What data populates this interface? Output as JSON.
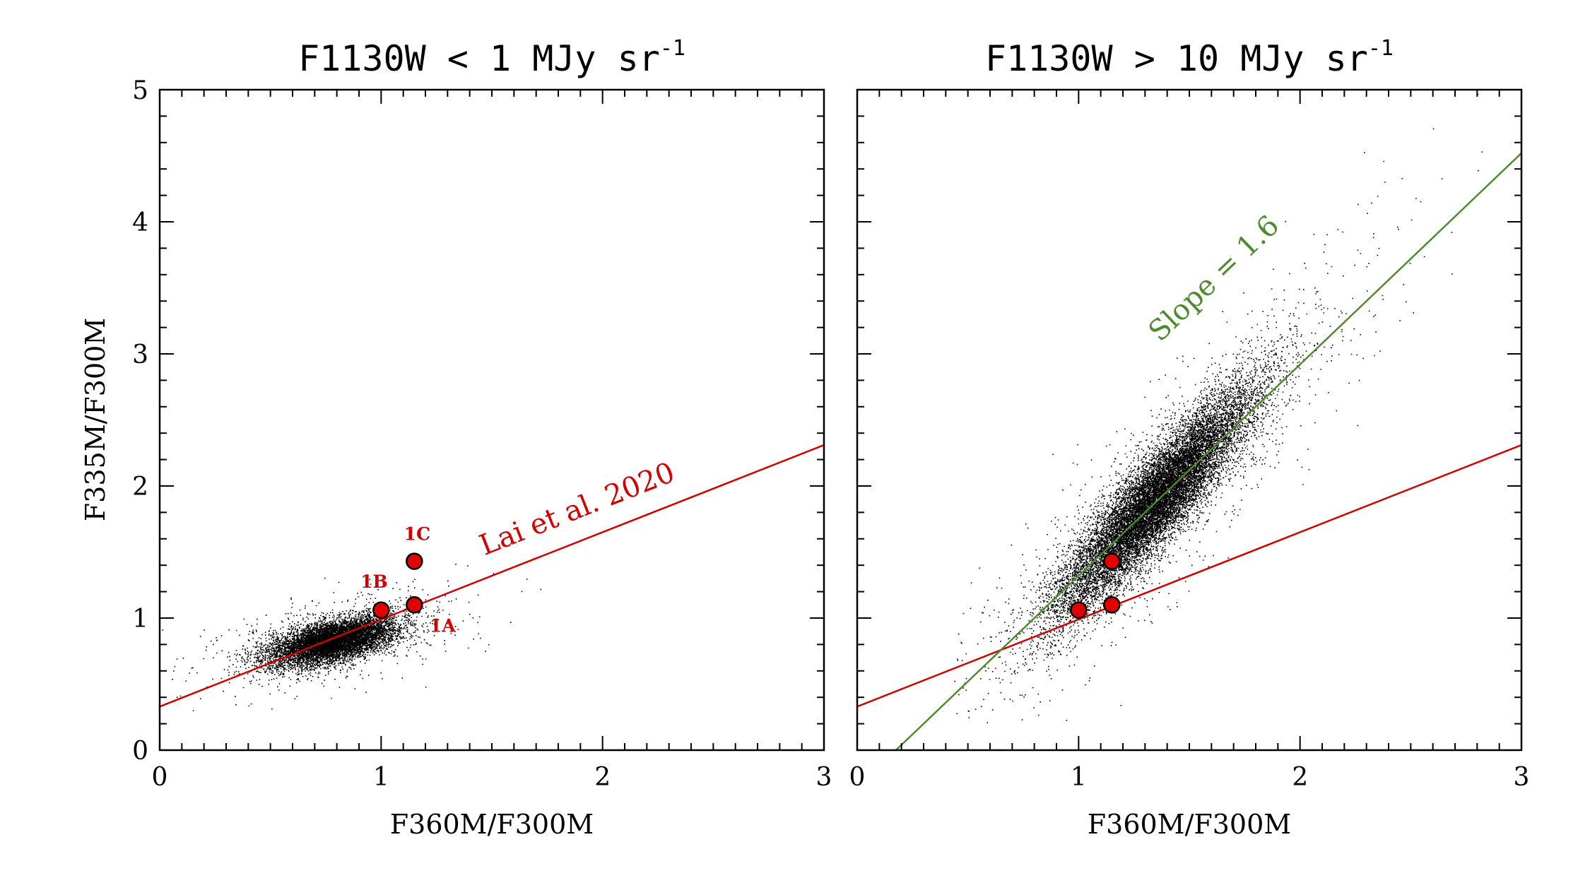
{
  "colors": {
    "red_line": "#d40000",
    "green_line": "#4e8a2e",
    "marker_fill": "#e00000",
    "marker_edge": "#000000",
    "density": "#000000"
  },
  "chart_data": [
    {
      "type": "scatter",
      "title_main": "F1130W < 1 MJy sr",
      "title_sup": "-1",
      "xlabel": "F360M/F300M",
      "ylabel": "F335M/F300M",
      "xlim": [
        0,
        3
      ],
      "ylim": [
        0,
        5
      ],
      "x_ticks": [
        "0",
        "1",
        "2",
        "3"
      ],
      "y_ticks": [
        "0",
        "1",
        "2",
        "3",
        "4",
        "5"
      ],
      "grid": false,
      "density_cloud": {
        "center": [
          0.78,
          0.83
        ],
        "sigma": [
          0.14,
          0.09
        ],
        "correlation": 0.55,
        "extent": [
          0.3,
          1.55
        ]
      },
      "lines": [
        {
          "name": "Lai et al. 2020",
          "slope": 0.66,
          "intercept": 0.33,
          "color": "red_line"
        }
      ],
      "annotations": [
        {
          "text": "Lai et al. 2020",
          "x": 1.9,
          "y": 1.76,
          "rotate_with": 0
        }
      ],
      "points": [
        {
          "label": "1A",
          "x": 1.15,
          "y": 1.1
        },
        {
          "label": "1B",
          "x": 1.0,
          "y": 1.06
        },
        {
          "label": "1C",
          "x": 1.15,
          "y": 1.43
        }
      ]
    },
    {
      "type": "scatter",
      "title_main": "F1130W > 10 MJy sr",
      "title_sup": "-1",
      "xlabel": "F360M/F300M",
      "ylabel": "",
      "xlim": [
        0,
        3
      ],
      "ylim": [
        0,
        5
      ],
      "x_ticks": [
        "0",
        "1",
        "2",
        "3"
      ],
      "y_ticks": [],
      "grid": false,
      "density_cloud": {
        "center": [
          1.35,
          1.9
        ],
        "sigma": [
          0.22,
          0.42
        ],
        "correlation": 0.9,
        "extent": [
          0.7,
          2.6
        ]
      },
      "lines": [
        {
          "name": "",
          "slope": 0.66,
          "intercept": 0.33,
          "color": "red_line"
        },
        {
          "name": "Slope = 1.6",
          "slope": 1.6,
          "intercept": -0.28,
          "color": "green_line"
        }
      ],
      "annotations": [
        {
          "text": "Slope = 1.6",
          "x": 1.64,
          "y": 3.52,
          "rotate_with": 1
        }
      ],
      "points": [
        {
          "label": "",
          "x": 1.0,
          "y": 1.06
        },
        {
          "label": "",
          "x": 1.15,
          "y": 1.1
        },
        {
          "label": "",
          "x": 1.15,
          "y": 1.43
        }
      ]
    }
  ]
}
